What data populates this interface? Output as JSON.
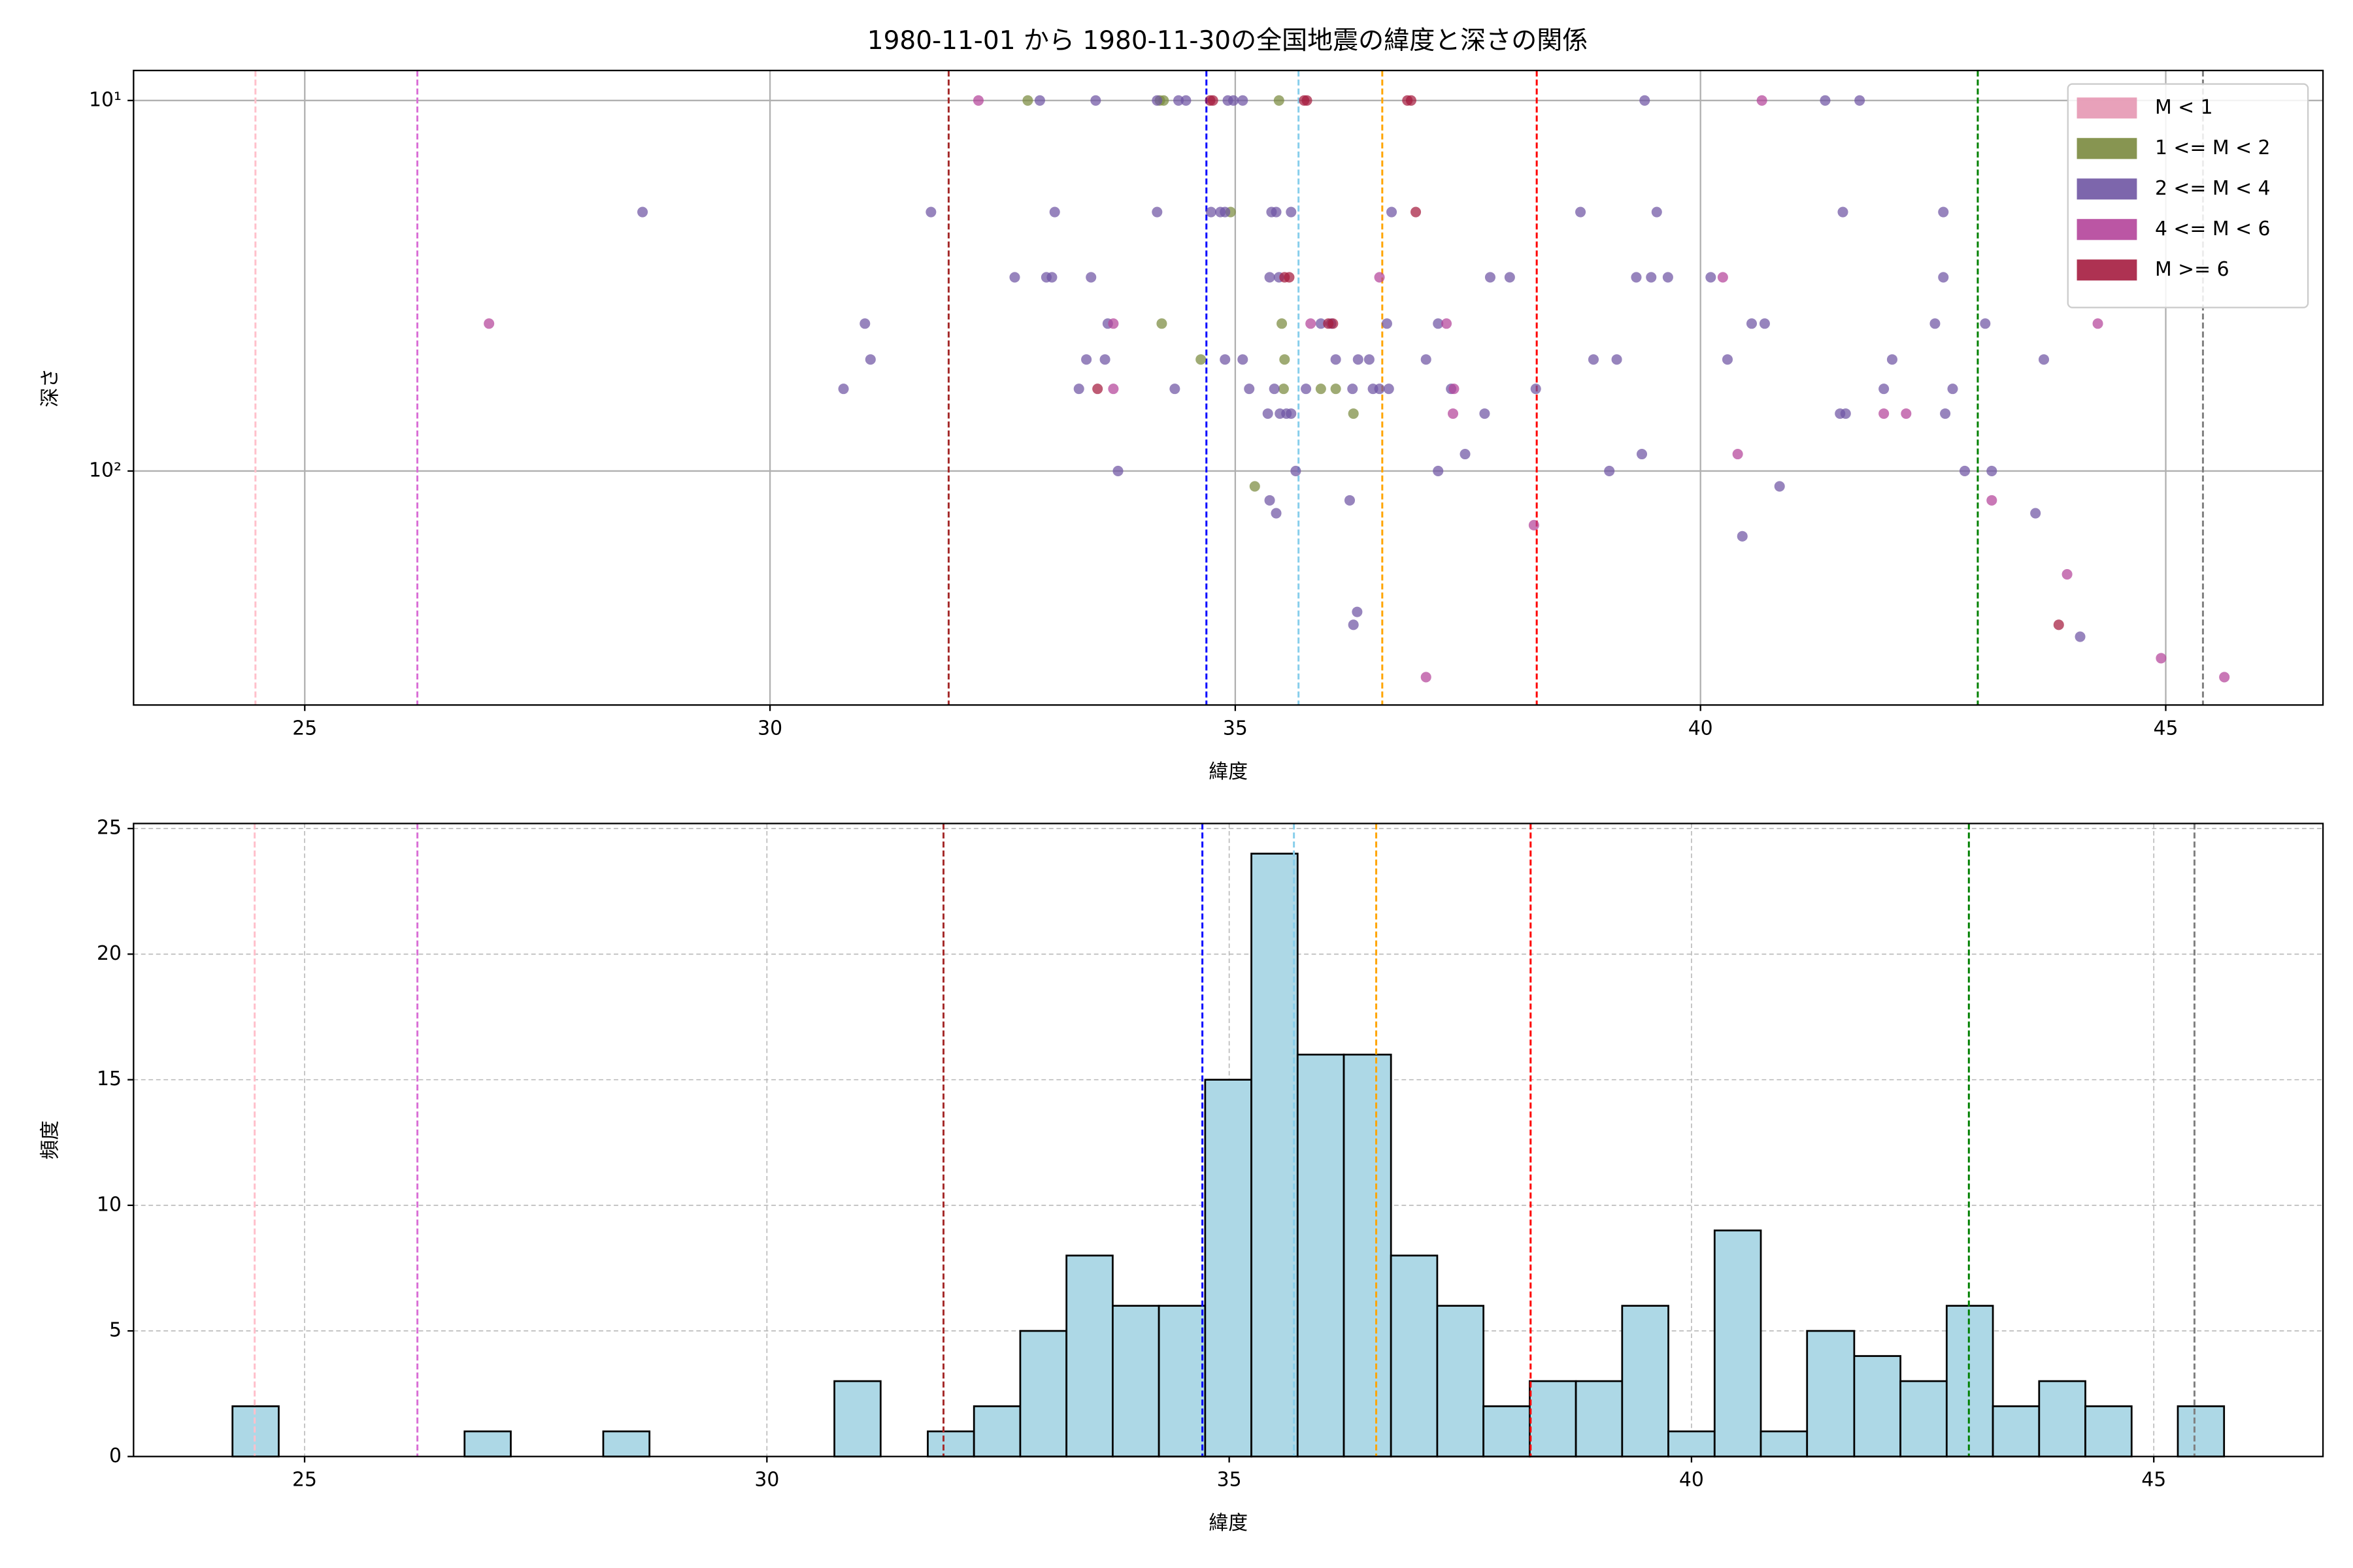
{
  "chart_data": [
    {
      "type": "scatter",
      "title": "1980-11-01 から 1980-11-30の全国地震の緯度と深さの関係",
      "xlabel": "緯度",
      "ylabel": "深さ",
      "xlim": [
        23.16,
        46.69
      ],
      "xticks": [
        25,
        30,
        35,
        40,
        45
      ],
      "ylim": [
        428,
        8.3
      ],
      "log_y": true,
      "yticks": [
        {
          "value": 10,
          "label": "10¹"
        },
        {
          "value": 100,
          "label": "10²"
        }
      ],
      "grid": true,
      "grid_style": "solid",
      "legend": "upper right",
      "reference_lines": [
        {
          "value": 24.47,
          "color": "pink"
        },
        {
          "value": 26.21,
          "color": "orchid"
        },
        {
          "value": 31.92,
          "color": "brown"
        },
        {
          "value": 34.69,
          "color": "blue"
        },
        {
          "value": 35.68,
          "color": "skyblue"
        },
        {
          "value": 36.58,
          "color": "orange"
        },
        {
          "value": 38.24,
          "color": "red"
        },
        {
          "value": 42.98,
          "color": "green"
        },
        {
          "value": 45.4,
          "color": "gray"
        }
      ],
      "series": [
        {
          "name": "M < 1",
          "color": "#e597b2",
          "x": [],
          "values": []
        },
        {
          "name": "1 <= M < 2",
          "color": "#7a8a3e",
          "x": [
            32.77,
            34.19,
            35.47,
            34.23,
            34.95,
            34.21,
            35.5,
            34.63,
            35.53,
            35.52,
            35.92,
            36.08,
            36.27,
            35.21
          ],
          "values": [
            10,
            10,
            10,
            10,
            20,
            40,
            40,
            50,
            50,
            60,
            60,
            60,
            70,
            110
          ]
        },
        {
          "name": "2 <= M < 4",
          "color": "#6f55a3",
          "x": [
            32.9,
            33.5,
            34.16,
            34.39,
            34.47,
            34.92,
            34.98,
            35.08,
            39.4,
            41.34,
            41.71,
            28.63,
            31.73,
            33.06,
            34.16,
            34.74,
            34.84,
            34.89,
            35.39,
            35.44,
            35.6,
            36.68,
            38.71,
            39.53,
            41.53,
            42.61,
            32.63,
            32.97,
            33.03,
            33.45,
            35.37,
            35.47,
            37.74,
            37.95,
            39.31,
            39.47,
            39.65,
            40.11,
            42.61,
            31.02,
            33.63,
            35.92,
            36.03,
            36.63,
            37.18,
            40.55,
            40.69,
            42.52,
            43.06,
            31.08,
            33.4,
            33.6,
            34.89,
            35.08,
            36.08,
            36.32,
            36.44,
            37.05,
            38.85,
            39.1,
            40.29,
            42.06,
            43.69,
            30.79,
            33.32,
            34.35,
            35.15,
            35.42,
            35.76,
            36.26,
            36.48,
            36.55,
            36.65,
            37.32,
            38.23,
            41.97,
            42.71,
            35.35,
            35.48,
            35.55,
            35.6,
            37.68,
            41.5,
            41.56,
            42.63,
            37.47,
            39.37,
            33.74,
            35.65,
            37.18,
            39.02,
            42.84,
            43.13,
            40.85,
            35.37,
            36.23,
            35.44,
            43.6,
            40.45,
            36.31,
            36.27,
            44.08
          ],
          "values": [
            10,
            10,
            10,
            10,
            10,
            10,
            10,
            10,
            10,
            10,
            10,
            20,
            20,
            20,
            20,
            20,
            20,
            20,
            20,
            20,
            20,
            20,
            20,
            20,
            20,
            20,
            30,
            30,
            30,
            30,
            30,
            30,
            30,
            30,
            30,
            30,
            30,
            30,
            30,
            40,
            40,
            40,
            40,
            40,
            40,
            40,
            40,
            40,
            40,
            50,
            50,
            50,
            50,
            50,
            50,
            50,
            50,
            50,
            50,
            50,
            50,
            50,
            50,
            60,
            60,
            60,
            60,
            60,
            60,
            60,
            60,
            60,
            60,
            60,
            60,
            60,
            60,
            70,
            70,
            70,
            70,
            70,
            70,
            70,
            70,
            90,
            90,
            100,
            100,
            100,
            100,
            100,
            100,
            110,
            120,
            120,
            130,
            130,
            150,
            240,
            260,
            280
          ]
        },
        {
          "name": "4 <= M < 6",
          "color": "#b4449a",
          "x": [
            32.24,
            40.66,
            36.55,
            40.24,
            26.98,
            33.69,
            35.81,
            37.27,
            44.27,
            33.69,
            37.35,
            37.34,
            41.97,
            42.21,
            40.4,
            43.13,
            38.21,
            43.94,
            44.95,
            37.05,
            45.63
          ],
          "values": [
            10,
            10,
            30,
            30,
            40,
            40,
            40,
            40,
            40,
            60,
            60,
            70,
            70,
            70,
            90,
            120,
            140,
            190,
            320,
            360,
            360
          ]
        },
        {
          "name": "M >= 6",
          "color": "#a51c3f",
          "x": [
            34.73,
            34.76,
            35.74,
            35.77,
            36.85,
            36.89,
            36.94,
            35.53,
            35.58,
            36.0,
            36.05,
            33.52,
            43.85
          ],
          "values": [
            10,
            10,
            10,
            10,
            10,
            10,
            20,
            30,
            30,
            40,
            40,
            60,
            260
          ]
        }
      ]
    },
    {
      "type": "histogram",
      "xlabel": "緯度",
      "ylabel": "頻度",
      "xlim": [
        23.15,
        46.83
      ],
      "xticks": [
        25,
        30,
        35,
        40,
        45
      ],
      "ylim": [
        0,
        25.2
      ],
      "yticks": [
        0,
        5,
        10,
        15,
        20,
        25
      ],
      "grid": true,
      "grid_style": "dashed",
      "color": "#add8e6",
      "edgecolor": "#000000",
      "reference_lines": [
        {
          "value": 24.46,
          "color": "pink"
        },
        {
          "value": 26.22,
          "color": "orchid"
        },
        {
          "value": 31.91,
          "color": "brown"
        },
        {
          "value": 34.71,
          "color": "blue"
        },
        {
          "value": 35.7,
          "color": "skyblue"
        },
        {
          "value": 36.59,
          "color": "orange"
        },
        {
          "value": 38.26,
          "color": "red"
        },
        {
          "value": 43.0,
          "color": "green"
        },
        {
          "value": 45.44,
          "color": "gray"
        }
      ],
      "bins": [
        24.22,
        24.72,
        25.22,
        25.72,
        26.22,
        26.73,
        27.23,
        27.73,
        28.23,
        28.73,
        29.23,
        29.73,
        30.23,
        30.73,
        31.23,
        31.74,
        32.24,
        32.74,
        33.24,
        33.74,
        34.24,
        34.74,
        35.24,
        35.74,
        36.24,
        36.75,
        37.25,
        37.75,
        38.25,
        38.75,
        39.25,
        39.75,
        40.25,
        40.75,
        41.25,
        41.76,
        42.26,
        42.76,
        43.26,
        43.76,
        44.26,
        44.76,
        45.26,
        45.76
      ],
      "values": [
        2,
        0,
        0,
        0,
        0,
        1,
        0,
        0,
        1,
        0,
        0,
        0,
        0,
        3,
        0,
        1,
        2,
        5,
        8,
        6,
        6,
        15,
        24,
        16,
        16,
        8,
        6,
        2,
        3,
        3,
        6,
        1,
        9,
        1,
        5,
        4,
        3,
        6,
        2,
        3,
        2,
        0,
        2
      ]
    }
  ]
}
